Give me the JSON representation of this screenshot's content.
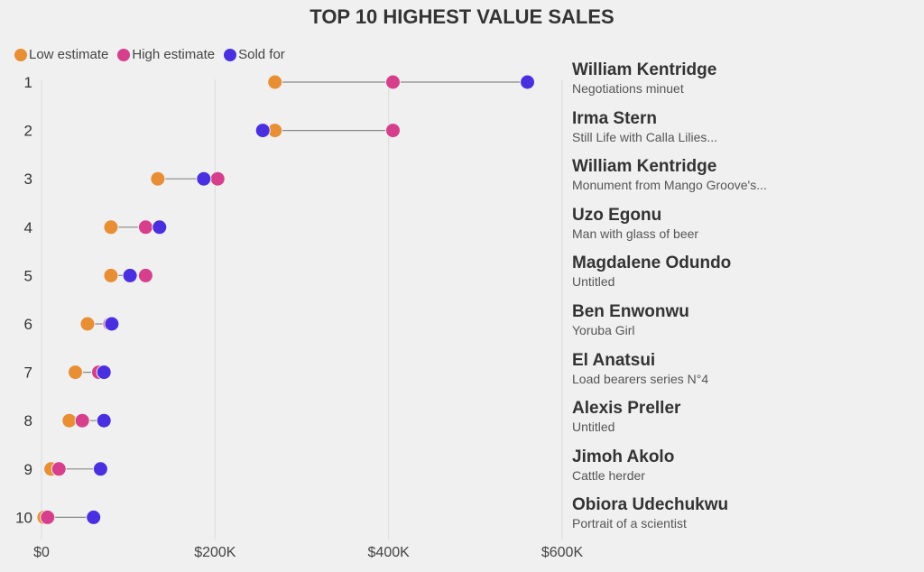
{
  "title": "TOP 10 HIGHEST VALUE SALES",
  "legend": [
    {
      "label": "Low estimate",
      "color": "#e88e35"
    },
    {
      "label": "High estimate",
      "color": "#d63f8c"
    },
    {
      "label": "Sold for",
      "color": "#4a2fe0"
    }
  ],
  "chart_data": {
    "type": "dot-range",
    "title": "TOP 10 HIGHEST VALUE SALES",
    "x_ticks": [
      "$0",
      "$200K",
      "$400K",
      "$600K"
    ],
    "x_range": [
      0,
      600000
    ],
    "grid": true,
    "legend_position": "top-left",
    "rows": [
      {
        "rank": "1",
        "artist": "William Kentridge",
        "work": "Negotiations minuet",
        "low": 269000,
        "high": 405000,
        "sold": 560000
      },
      {
        "rank": "2",
        "artist": "Irma Stern",
        "work": "Still Life with Calla Lilies...",
        "low": 269000,
        "high": 405000,
        "sold": 255000
      },
      {
        "rank": "3",
        "artist": "William Kentridge",
        "work": "Monument from Mango Groove's...",
        "low": 134000,
        "high": 203000,
        "sold": 187000
      },
      {
        "rank": "4",
        "artist": "Uzo Egonu",
        "work": "Man with glass of beer",
        "low": 80000,
        "high": 120000,
        "sold": 136000
      },
      {
        "rank": "5",
        "artist": "Magdalene Odundo",
        "work": "Untitled",
        "low": 80000,
        "high": 120000,
        "sold": 102000
      },
      {
        "rank": "6",
        "artist": "Ben Enwonwu",
        "work": "Yoruba Girl",
        "low": 53000,
        "high": 79000,
        "sold": 81000
      },
      {
        "rank": "7",
        "artist": "El Anatsui",
        "work": "Load bearers series N°4",
        "low": 39000,
        "high": 66000,
        "sold": 72000
      },
      {
        "rank": "8",
        "artist": "Alexis Preller",
        "work": "Untitled",
        "low": 32000,
        "high": 47000,
        "sold": 72000
      },
      {
        "rank": "9",
        "artist": "Jimoh Akolo",
        "work": "Cattle herder",
        "low": 11000,
        "high": 20000,
        "sold": 68000
      },
      {
        "rank": "10",
        "artist": "Obiora Udechukwu",
        "work": "Portrait of a scientist",
        "low": 3000,
        "high": 7000,
        "sold": 60000
      }
    ]
  }
}
